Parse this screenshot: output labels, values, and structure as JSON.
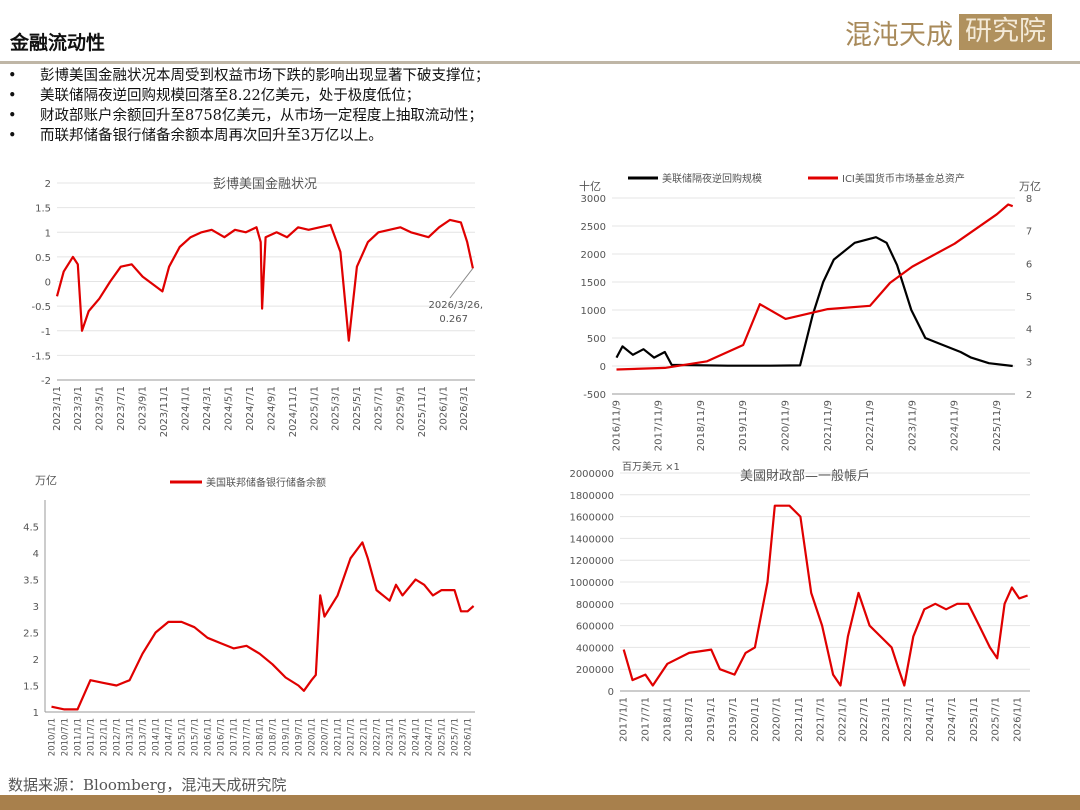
{
  "header": {
    "title": "金融流动性",
    "logo": "混沌天成研究院"
  },
  "bullets": [
    "彭博美国金融状况本周受到权益市场下跌的影响出现显著下破支撑位；",
    "美联储隔夜逆回购规模回落至8.22亿美元，处于极度低位；",
    "财政部账户余额回升至8758亿美元，从市场一定程度上抽取流动性；",
    "而联邦储备银行储备余额本周再次回升至3万亿以上。"
  ],
  "footer": {
    "source": "数据来源：Bloomberg，混沌天成研究院"
  },
  "colors": {
    "red": "#e00000",
    "black": "#000000",
    "brand": "#a8804c"
  },
  "chart_data": [
    {
      "type": "line",
      "title": "彭博美国金融状况",
      "ylim": [
        -2,
        2
      ],
      "yticks": [
        -2,
        -1.5,
        -1,
        -0.5,
        0,
        0.5,
        1,
        1.5,
        2
      ],
      "xticks": [
        "2023/1/1",
        "2023/3/1",
        "2023/5/1",
        "2023/7/1",
        "2023/9/1",
        "2023/11/1",
        "2024/1/1",
        "2024/3/1",
        "2024/5/1",
        "2024/7/1",
        "2024/9/1",
        "2024/11/1",
        "2025/1/1",
        "2025/3/1",
        "2025/5/1",
        "2025/7/1",
        "2025/9/1",
        "2025/11/1",
        "2026/1/1",
        "2026/3/1"
      ],
      "annotation": {
        "text1": "2026/3/26,",
        "text2": "0.267",
        "x": "2026-03-26",
        "y": 0.267
      },
      "series": [
        {
          "color": "#e00000",
          "points": [
            [
              "2023-01-01",
              -0.3
            ],
            [
              "2023-01-20",
              0.2
            ],
            [
              "2023-02-15",
              0.5
            ],
            [
              "2023-03-01",
              0.35
            ],
            [
              "2023-03-13",
              -1.0
            ],
            [
              "2023-04-01",
              -0.6
            ],
            [
              "2023-05-01",
              -0.35
            ],
            [
              "2023-06-01",
              0.0
            ],
            [
              "2023-07-01",
              0.3
            ],
            [
              "2023-08-01",
              0.35
            ],
            [
              "2023-09-01",
              0.1
            ],
            [
              "2023-10-27",
              -0.2
            ],
            [
              "2023-11-15",
              0.3
            ],
            [
              "2023-12-15",
              0.7
            ],
            [
              "2024-01-15",
              0.9
            ],
            [
              "2024-02-15",
              1.0
            ],
            [
              "2024-03-15",
              1.05
            ],
            [
              "2024-04-20",
              0.9
            ],
            [
              "2024-05-20",
              1.05
            ],
            [
              "2024-06-20",
              1.0
            ],
            [
              "2024-07-20",
              1.1
            ],
            [
              "2024-08-01",
              0.8
            ],
            [
              "2024-08-05",
              -0.55
            ],
            [
              "2024-08-15",
              0.9
            ],
            [
              "2024-09-15",
              1.0
            ],
            [
              "2024-10-15",
              0.9
            ],
            [
              "2024-11-15",
              1.1
            ],
            [
              "2024-12-15",
              1.05
            ],
            [
              "2025-01-15",
              1.1
            ],
            [
              "2025-02-15",
              1.15
            ],
            [
              "2025-03-15",
              0.6
            ],
            [
              "2025-04-08",
              -1.2
            ],
            [
              "2025-05-01",
              0.3
            ],
            [
              "2025-06-01",
              0.8
            ],
            [
              "2025-07-01",
              1.0
            ],
            [
              "2025-08-01",
              1.05
            ],
            [
              "2025-09-01",
              1.1
            ],
            [
              "2025-10-01",
              1.0
            ],
            [
              "2025-11-20",
              0.9
            ],
            [
              "2025-12-20",
              1.1
            ],
            [
              "2026-01-20",
              1.25
            ],
            [
              "2026-02-20",
              1.2
            ],
            [
              "2026-03-10",
              0.8
            ],
            [
              "2026-03-26",
              0.267
            ]
          ]
        }
      ]
    },
    {
      "type": "line",
      "ylabel": "十亿",
      "y2label": "万亿",
      "ylim": [
        -500,
        3000
      ],
      "y2lim": [
        2,
        8
      ],
      "yticks": [
        -500,
        0,
        500,
        1000,
        1500,
        2000,
        2500,
        3000
      ],
      "y2ticks": [
        2,
        3,
        4,
        5,
        6,
        7,
        8
      ],
      "xticks": [
        "2016/11/9",
        "2017/11/9",
        "2018/11/9",
        "2019/11/9",
        "2020/11/9",
        "2021/11/9",
        "2022/11/9",
        "2023/11/9",
        "2024/11/9",
        "2025/11/9"
      ],
      "legend": "top",
      "series": [
        {
          "name": "美联储隔夜逆回购规模",
          "color": "#000000",
          "axis": "left",
          "points": [
            [
              "2016-11-09",
              150
            ],
            [
              "2016-12-31",
              350
            ],
            [
              "2017-03-31",
              200
            ],
            [
              "2017-06-30",
              300
            ],
            [
              "2017-09-30",
              150
            ],
            [
              "2017-12-31",
              250
            ],
            [
              "2018-03-01",
              20
            ],
            [
              "2019-06-30",
              5
            ],
            [
              "2020-06-30",
              5
            ],
            [
              "2021-03-15",
              10
            ],
            [
              "2021-06-30",
              900
            ],
            [
              "2021-09-30",
              1500
            ],
            [
              "2021-12-31",
              1900
            ],
            [
              "2022-06-30",
              2200
            ],
            [
              "2022-12-31",
              2300
            ],
            [
              "2023-04-01",
              2200
            ],
            [
              "2023-07-01",
              1800
            ],
            [
              "2023-11-01",
              1000
            ],
            [
              "2024-03-01",
              500
            ],
            [
              "2024-07-01",
              400
            ],
            [
              "2024-12-31",
              250
            ],
            [
              "2025-04-01",
              150
            ],
            [
              "2025-09-01",
              50
            ],
            [
              "2026-03-26",
              0.822
            ]
          ]
        },
        {
          "name": "ICI美国货币市场基金总资产",
          "color": "#e00000",
          "axis": "right",
          "points": [
            [
              "2016-11-09",
              2.75
            ],
            [
              "2018-01-01",
              2.8
            ],
            [
              "2019-01-01",
              3.0
            ],
            [
              "2019-11-09",
              3.5
            ],
            [
              "2020-04-01",
              4.75
            ],
            [
              "2020-11-09",
              4.3
            ],
            [
              "2021-11-09",
              4.6
            ],
            [
              "2022-11-09",
              4.7
            ],
            [
              "2023-05-01",
              5.4
            ],
            [
              "2023-11-09",
              5.9
            ],
            [
              "2024-11-09",
              6.6
            ],
            [
              "2025-11-09",
              7.5
            ],
            [
              "2026-02-15",
              7.8
            ],
            [
              "2026-03-26",
              7.75
            ]
          ]
        }
      ]
    },
    {
      "type": "line",
      "ylabel": "万亿",
      "ylim": [
        1,
        5
      ],
      "yticks": [
        1,
        1.5,
        2,
        2.5,
        3,
        3.5,
        4,
        4.5
      ],
      "legend": "top",
      "xticks": [
        "2010/1/1",
        "2010/7/1",
        "2011/1/1",
        "2011/7/1",
        "2012/1/1",
        "2012/7/1",
        "2013/1/1",
        "2013/7/1",
        "2014/1/1",
        "2014/7/1",
        "2015/1/1",
        "2015/7/1",
        "2016/1/1",
        "2016/7/1",
        "2017/1/1",
        "2017/7/1",
        "2018/1/1",
        "2018/7/1",
        "2019/1/1",
        "2019/7/1",
        "2020/1/1",
        "2020/7/1",
        "2021/1/1",
        "2021/7/1",
        "2022/1/1",
        "2022/7/1",
        "2023/1/1",
        "2023/7/1",
        "2024/1/1",
        "2024/7/1",
        "2025/1/1",
        "2025/7/1",
        "2026/1/1"
      ],
      "series": [
        {
          "name": "美国联邦储备银行储备余额",
          "color": "#e00000",
          "points": [
            [
              "2010-01-01",
              1.1
            ],
            [
              "2010-07-01",
              1.05
            ],
            [
              "2011-01-01",
              1.05
            ],
            [
              "2011-07-01",
              1.6
            ],
            [
              "2012-01-01",
              1.55
            ],
            [
              "2012-07-01",
              1.5
            ],
            [
              "2013-01-01",
              1.6
            ],
            [
              "2013-07-01",
              2.1
            ],
            [
              "2014-01-01",
              2.5
            ],
            [
              "2014-07-01",
              2.7
            ],
            [
              "2015-01-01",
              2.7
            ],
            [
              "2015-07-01",
              2.6
            ],
            [
              "2016-01-01",
              2.4
            ],
            [
              "2016-07-01",
              2.3
            ],
            [
              "2017-01-01",
              2.2
            ],
            [
              "2017-07-01",
              2.25
            ],
            [
              "2018-01-01",
              2.1
            ],
            [
              "2018-07-01",
              1.9
            ],
            [
              "2019-01-01",
              1.65
            ],
            [
              "2019-07-01",
              1.5
            ],
            [
              "2019-09-15",
              1.4
            ],
            [
              "2020-01-01",
              1.6
            ],
            [
              "2020-03-01",
              1.7
            ],
            [
              "2020-05-01",
              3.2
            ],
            [
              "2020-07-01",
              2.8
            ],
            [
              "2021-01-01",
              3.2
            ],
            [
              "2021-07-01",
              3.9
            ],
            [
              "2021-12-15",
              4.2
            ],
            [
              "2022-03-01",
              3.9
            ],
            [
              "2022-07-01",
              3.3
            ],
            [
              "2023-01-01",
              3.1
            ],
            [
              "2023-04-01",
              3.4
            ],
            [
              "2023-07-01",
              3.2
            ],
            [
              "2024-01-01",
              3.5
            ],
            [
              "2024-05-01",
              3.4
            ],
            [
              "2024-09-01",
              3.2
            ],
            [
              "2025-01-01",
              3.3
            ],
            [
              "2025-07-01",
              3.3
            ],
            [
              "2025-10-01",
              2.9
            ],
            [
              "2026-01-01",
              2.9
            ],
            [
              "2026-03-26",
              3.0
            ]
          ]
        }
      ]
    },
    {
      "type": "line",
      "title": "美國財政部—一般帳戶",
      "ylabel": "百万美元 ×1",
      "ylim": [
        0,
        2000000
      ],
      "yticks": [
        0,
        200000,
        400000,
        600000,
        800000,
        1000000,
        1200000,
        1400000,
        1600000,
        1800000,
        2000000
      ],
      "xticks": [
        "2017/1/1",
        "2017/7/1",
        "2018/1/1",
        "2018/7/1",
        "2019/1/1",
        "2019/7/1",
        "2020/1/1",
        "2020/7/1",
        "2021/1/1",
        "2021/7/1",
        "2022/1/1",
        "2022/7/1",
        "2023/1/1",
        "2023/7/1",
        "2024/1/1",
        "2024/7/1",
        "2025/1/1",
        "2025/7/1",
        "2026/1/1"
      ],
      "series": [
        {
          "color": "#e00000",
          "points": [
            [
              "2017-01-01",
              380000
            ],
            [
              "2017-03-15",
              100000
            ],
            [
              "2017-07-01",
              150000
            ],
            [
              "2017-09-01",
              50000
            ],
            [
              "2018-01-01",
              250000
            ],
            [
              "2018-07-01",
              350000
            ],
            [
              "2019-01-01",
              380000
            ],
            [
              "2019-03-15",
              200000
            ],
            [
              "2019-07-15",
              150000
            ],
            [
              "2019-10-15",
              350000
            ],
            [
              "2020-01-01",
              400000
            ],
            [
              "2020-04-15",
              1000000
            ],
            [
              "2020-06-15",
              1700000
            ],
            [
              "2020-10-15",
              1700000
            ],
            [
              "2021-01-15",
              1600000
            ],
            [
              "2021-04-15",
              900000
            ],
            [
              "2021-07-15",
              600000
            ],
            [
              "2021-10-15",
              150000
            ],
            [
              "2021-12-15",
              50000
            ],
            [
              "2022-02-15",
              500000
            ],
            [
              "2022-05-15",
              900000
            ],
            [
              "2022-08-15",
              600000
            ],
            [
              "2022-11-15",
              500000
            ],
            [
              "2023-02-15",
              400000
            ],
            [
              "2023-04-15",
              200000
            ],
            [
              "2023-06-01",
              50000
            ],
            [
              "2023-08-15",
              500000
            ],
            [
              "2023-11-15",
              750000
            ],
            [
              "2024-02-15",
              800000
            ],
            [
              "2024-05-15",
              750000
            ],
            [
              "2024-08-15",
              800000
            ],
            [
              "2024-11-15",
              800000
            ],
            [
              "2025-02-15",
              600000
            ],
            [
              "2025-05-15",
              400000
            ],
            [
              "2025-07-15",
              300000
            ],
            [
              "2025-09-15",
              800000
            ],
            [
              "2025-11-15",
              950000
            ],
            [
              "2026-01-15",
              850000
            ],
            [
              "2026-03-26",
              875800
            ]
          ]
        }
      ]
    }
  ]
}
